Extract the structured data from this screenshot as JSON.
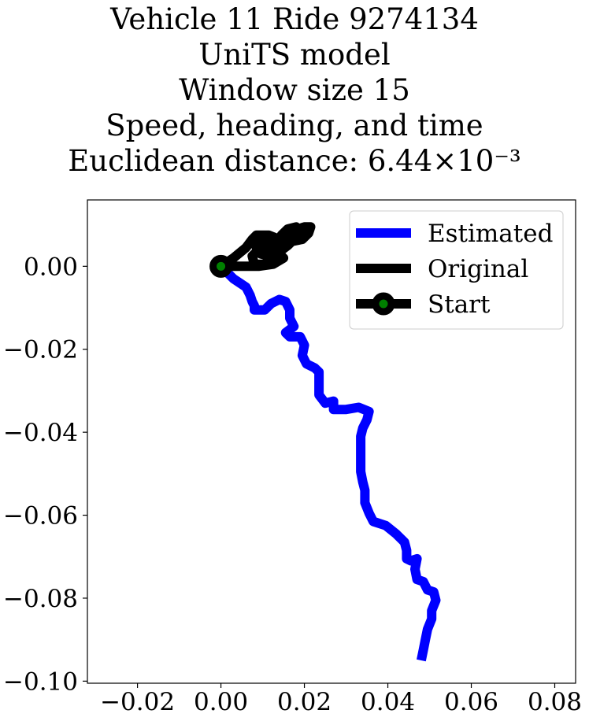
{
  "chart_data": {
    "type": "line",
    "title_lines": [
      "Vehicle 11 Ride 9274134",
      "UniTS model",
      "Window size 15",
      "Speed, heading, and time",
      "Euclidean distance: 6.44×10⁻³"
    ],
    "xlim": [
      -0.032,
      0.085
    ],
    "ylim": [
      -0.1005,
      0.016
    ],
    "x_ticks": [
      -0.02,
      0.0,
      0.02,
      0.04,
      0.06,
      0.08
    ],
    "x_tick_labels": [
      "−0.02",
      "0.00",
      "0.02",
      "0.04",
      "0.06",
      "0.08"
    ],
    "y_ticks": [
      0.0,
      -0.02,
      -0.04,
      -0.06,
      -0.08,
      -0.1
    ],
    "y_tick_labels": [
      "0.00",
      "−0.02",
      "−0.04",
      "−0.06",
      "−0.08",
      "−0.10"
    ],
    "grid": false,
    "legend_position": "top-right",
    "series": [
      {
        "name": "Estimated",
        "color": "#0000ff",
        "points": [
          [
            0.0,
            0.0
          ],
          [
            0.003,
            -0.003
          ],
          [
            0.006,
            -0.005
          ],
          [
            0.007,
            -0.007
          ],
          [
            0.0075,
            -0.0085
          ],
          [
            0.008,
            -0.0095
          ],
          [
            0.008,
            -0.0105
          ],
          [
            0.0105,
            -0.0105
          ],
          [
            0.012,
            -0.009
          ],
          [
            0.014,
            -0.008
          ],
          [
            0.0155,
            -0.0085
          ],
          [
            0.0165,
            -0.0105
          ],
          [
            0.0165,
            -0.0125
          ],
          [
            0.0175,
            -0.0145
          ],
          [
            0.0155,
            -0.016
          ],
          [
            0.0165,
            -0.017
          ],
          [
            0.019,
            -0.017
          ],
          [
            0.02,
            -0.019
          ],
          [
            0.0195,
            -0.0215
          ],
          [
            0.0205,
            -0.0235
          ],
          [
            0.0225,
            -0.0245
          ],
          [
            0.0235,
            -0.0255
          ],
          [
            0.0235,
            -0.027
          ],
          [
            0.0235,
            -0.029
          ],
          [
            0.0235,
            -0.031
          ],
          [
            0.025,
            -0.033
          ],
          [
            0.027,
            -0.0325
          ],
          [
            0.027,
            -0.0345
          ],
          [
            0.03,
            -0.0345
          ],
          [
            0.033,
            -0.034
          ],
          [
            0.0355,
            -0.035
          ],
          [
            0.035,
            -0.037
          ],
          [
            0.034,
            -0.039
          ],
          [
            0.0335,
            -0.041
          ],
          [
            0.0335,
            -0.043
          ],
          [
            0.0335,
            -0.045
          ],
          [
            0.0335,
            -0.0475
          ],
          [
            0.0335,
            -0.0495
          ],
          [
            0.034,
            -0.052
          ],
          [
            0.0345,
            -0.054
          ],
          [
            0.0345,
            -0.057
          ],
          [
            0.0355,
            -0.0595
          ],
          [
            0.0365,
            -0.0615
          ],
          [
            0.0395,
            -0.0625
          ],
          [
            0.042,
            -0.0645
          ],
          [
            0.044,
            -0.0665
          ],
          [
            0.0445,
            -0.0685
          ],
          [
            0.0445,
            -0.0705
          ],
          [
            0.0455,
            -0.071
          ],
          [
            0.047,
            -0.0705
          ],
          [
            0.0465,
            -0.073
          ],
          [
            0.047,
            -0.0755
          ],
          [
            0.0485,
            -0.076
          ],
          [
            0.0495,
            -0.078
          ],
          [
            0.051,
            -0.0785
          ],
          [
            0.0515,
            -0.0805
          ],
          [
            0.0505,
            -0.083
          ],
          [
            0.0505,
            -0.085
          ],
          [
            0.0495,
            -0.0875
          ],
          [
            0.049,
            -0.09
          ],
          [
            0.0485,
            -0.0925
          ],
          [
            0.048,
            -0.095
          ]
        ]
      },
      {
        "name": "Original",
        "color": "#000000",
        "points": [
          [
            0.0,
            0.0
          ],
          [
            0.003,
            0.002
          ],
          [
            0.006,
            0.0045
          ],
          [
            0.0075,
            0.0065
          ],
          [
            0.0085,
            0.0075
          ],
          [
            0.0115,
            0.0075
          ],
          [
            0.014,
            0.0065
          ],
          [
            0.0155,
            0.0075
          ],
          [
            0.0165,
            0.0085
          ],
          [
            0.0185,
            0.009
          ],
          [
            0.02,
            0.0095
          ],
          [
            0.0215,
            0.0095
          ],
          [
            0.021,
            0.008
          ],
          [
            0.0195,
            0.0065
          ],
          [
            0.017,
            0.006
          ],
          [
            0.0145,
            0.0055
          ],
          [
            0.012,
            0.0055
          ],
          [
            0.0095,
            0.006
          ],
          [
            0.0085,
            0.0045
          ],
          [
            0.0095,
            0.003
          ],
          [
            0.0115,
            0.0025
          ],
          [
            0.014,
            0.0035
          ],
          [
            0.016,
            0.005
          ],
          [
            0.0175,
            0.0065
          ],
          [
            0.019,
            0.0085
          ],
          [
            0.018,
            0.0095
          ],
          [
            0.016,
            0.009
          ],
          [
            0.0145,
            0.0075
          ],
          [
            0.0135,
            0.005
          ],
          [
            0.0125,
            0.0025
          ],
          [
            0.0105,
            0.0005
          ],
          [
            0.008,
            0.0005
          ],
          [
            0.0075,
            0.0025
          ],
          [
            0.009,
            0.004
          ],
          [
            0.0115,
            0.004
          ],
          [
            0.0135,
            0.0035
          ],
          [
            0.015,
            0.002
          ],
          [
            0.0125,
            0.0005
          ],
          [
            0.009,
            0.0
          ],
          [
            0.005,
            0.0
          ],
          [
            0.0,
            0.0
          ]
        ]
      }
    ],
    "start_marker": {
      "name": "Start",
      "x": 0.0,
      "y": 0.0,
      "face_color": "#008000",
      "edge_color": "#000000"
    }
  }
}
